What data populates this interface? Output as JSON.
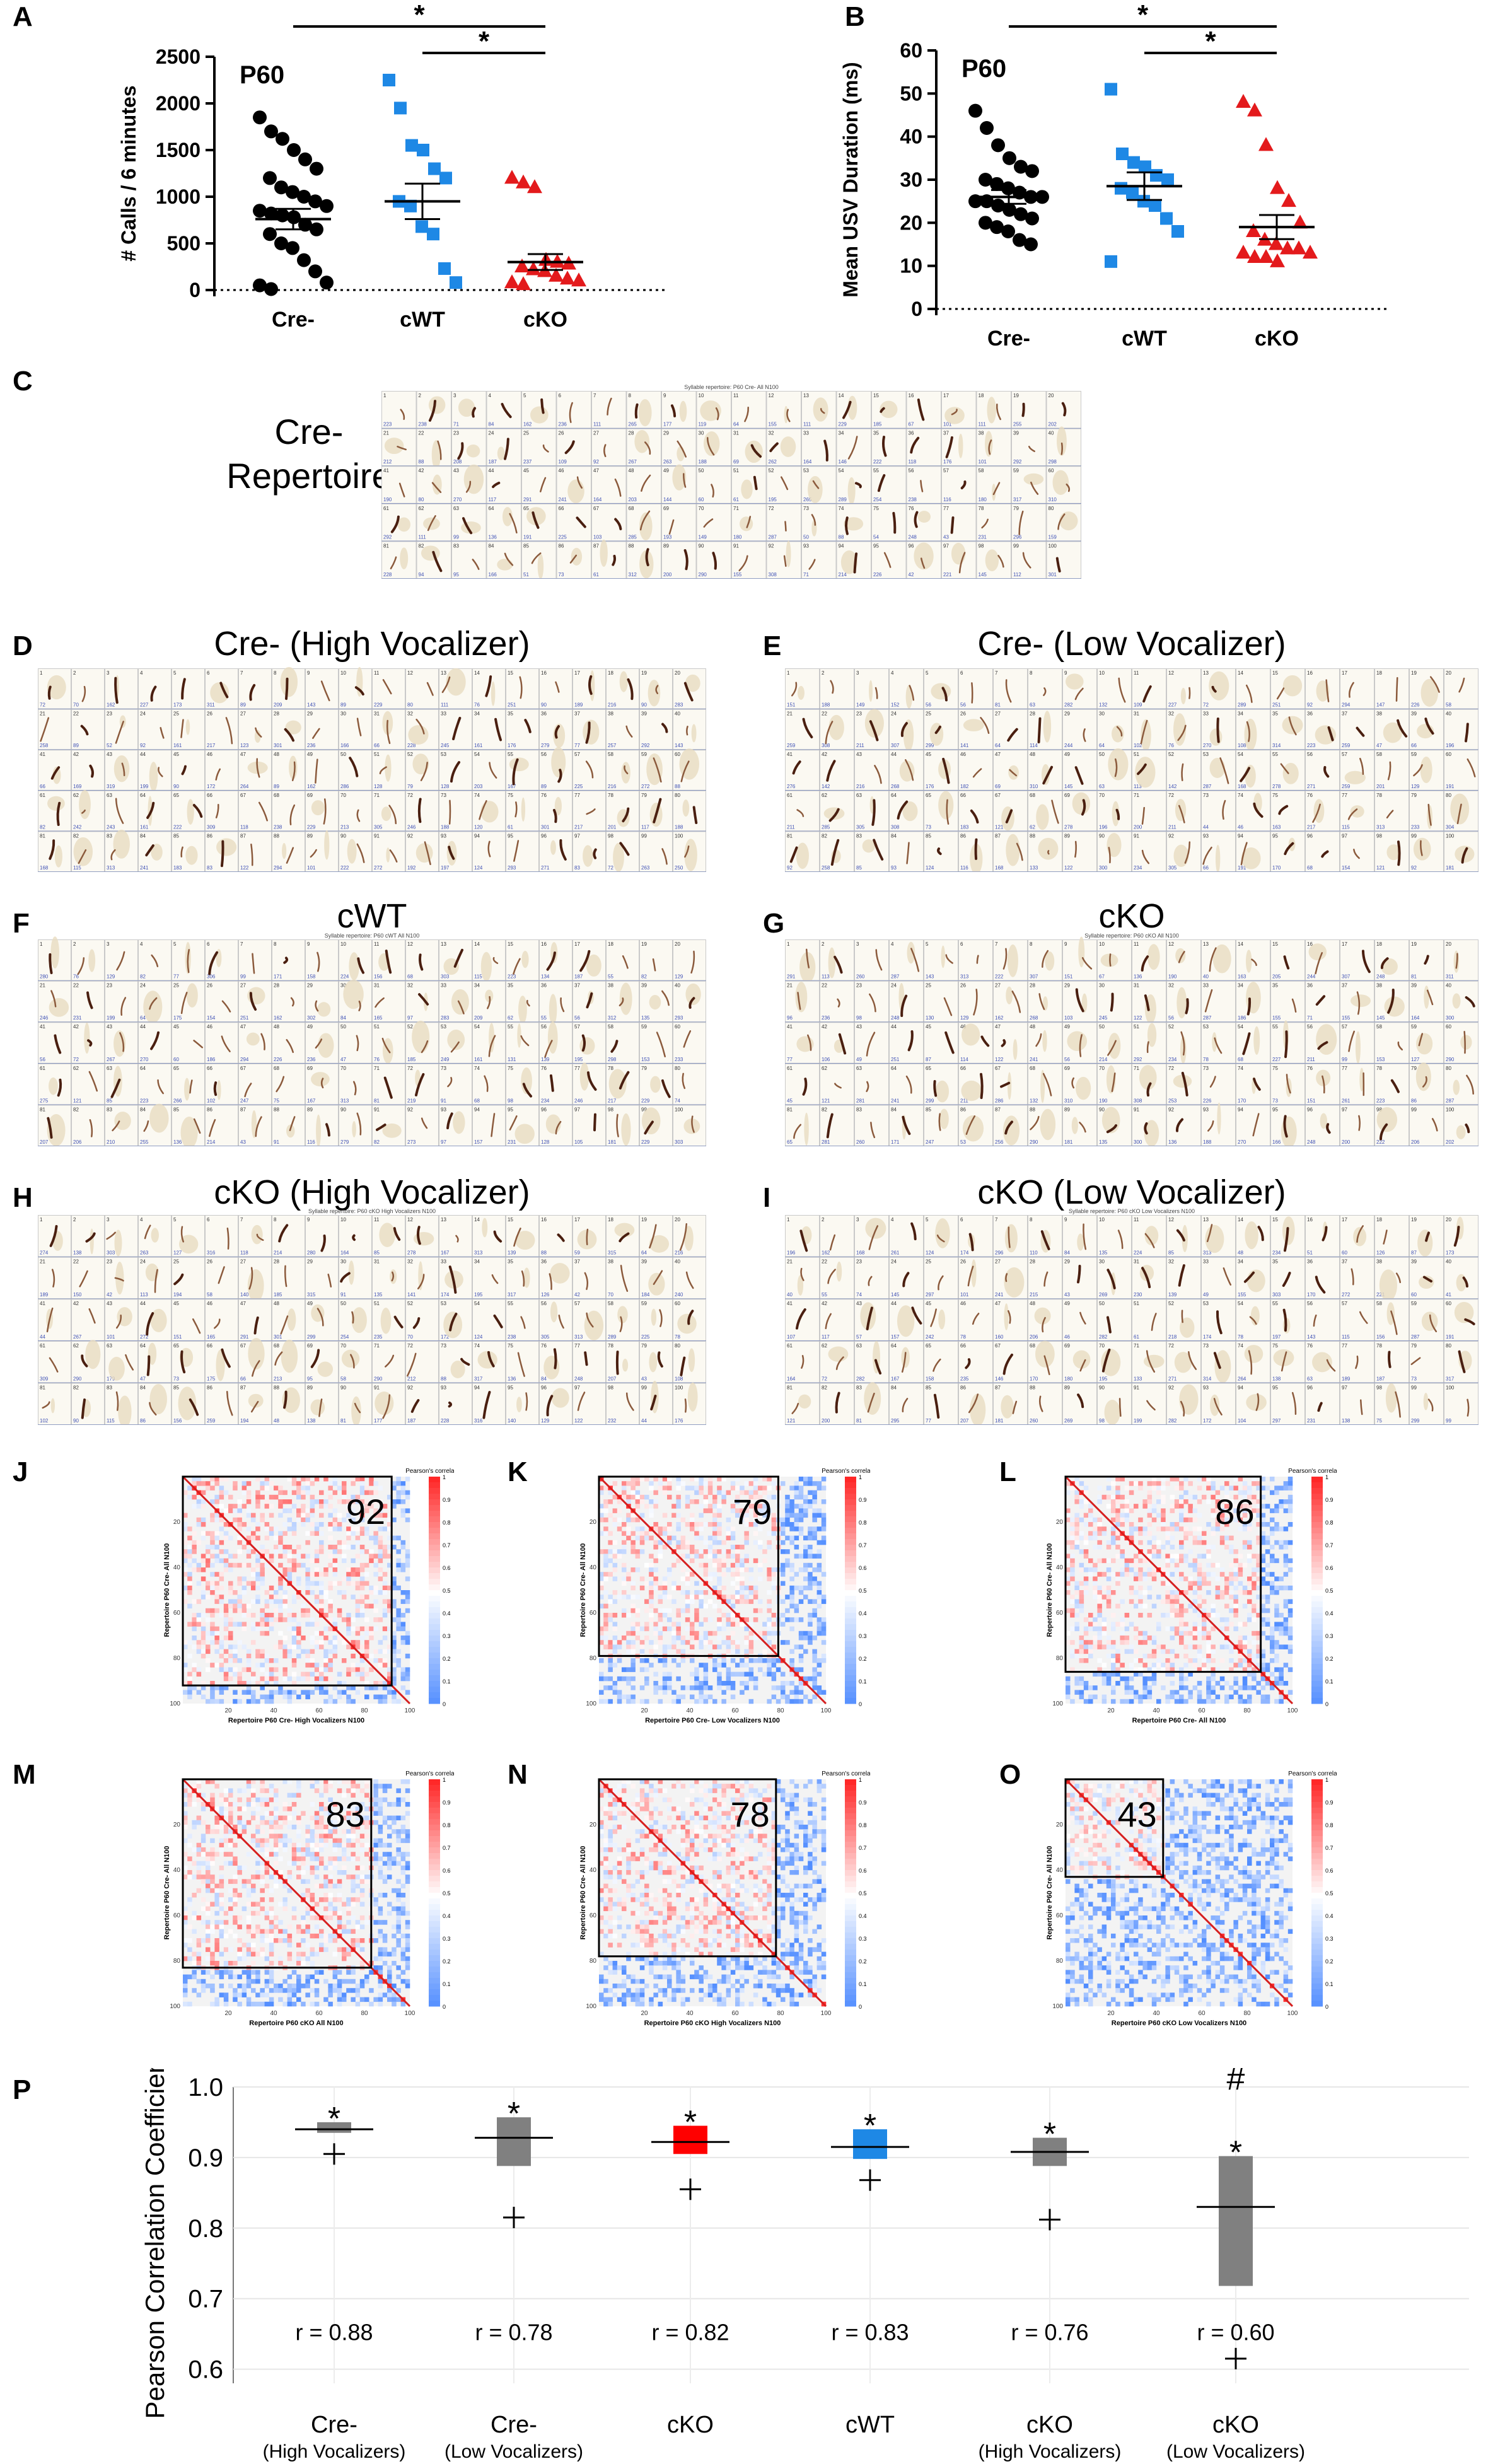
{
  "chart_data": [
    {
      "panel": "A",
      "type": "scatter",
      "title": "P60",
      "ylabel": "# Calls / 6 minutes",
      "xlabel": "",
      "categories": [
        "Cre-",
        "cWT",
        "cKO"
      ],
      "ylim": [
        0,
        2500
      ],
      "yticks": [
        0,
        500,
        1000,
        1500,
        2000,
        2500
      ],
      "colors": [
        "#000000",
        "#1e88e5",
        "#e31a1c"
      ],
      "markers": [
        "circle",
        "square",
        "triangle"
      ],
      "means": [
        760,
        950,
        300
      ],
      "sems": [
        110,
        190,
        85
      ],
      "series": [
        {
          "values": [
            1850,
            1700,
            1620,
            1500,
            1400,
            1300,
            1200,
            1100,
            1050,
            1000,
            950,
            900,
            850,
            820,
            800,
            780,
            700,
            650,
            600,
            500,
            450,
            320,
            200,
            80,
            50,
            10
          ]
        },
        {
          "values": [
            2250,
            1950,
            1550,
            1500,
            1300,
            1200,
            950,
            900,
            680,
            600,
            230,
            80
          ]
        },
        {
          "values": [
            1200,
            1150,
            1100,
            320,
            300,
            280,
            250,
            220,
            200,
            150,
            120,
            100,
            80,
            60
          ]
        }
      ],
      "significance": [
        {
          "pair": [
            0,
            2
          ],
          "label": "*"
        },
        {
          "pair": [
            1,
            2
          ],
          "label": "*"
        }
      ]
    },
    {
      "panel": "B",
      "type": "scatter",
      "title": "P60",
      "ylabel": "Mean USV Duration (ms)",
      "xlabel": "",
      "categories": [
        "Cre-",
        "cWT",
        "cKO"
      ],
      "ylim": [
        0,
        60
      ],
      "yticks": [
        0,
        10,
        20,
        30,
        40,
        50,
        60
      ],
      "colors": [
        "#000000",
        "#1e88e5",
        "#e31a1c"
      ],
      "markers": [
        "circle",
        "square",
        "triangle"
      ],
      "means": [
        26,
        28.5,
        19
      ],
      "sems": [
        1.6,
        3.2,
        2.8
      ],
      "series": [
        {
          "values": [
            46,
            42,
            38,
            35,
            33,
            32,
            30,
            29,
            28,
            27,
            26,
            26,
            25,
            25,
            24,
            23,
            22,
            21,
            20,
            19,
            18,
            16,
            15
          ]
        },
        {
          "values": [
            51,
            36,
            34,
            33,
            31,
            30,
            28,
            27,
            25,
            24,
            21,
            18,
            11
          ]
        },
        {
          "values": [
            48,
            46,
            38,
            28,
            25,
            20,
            18,
            16,
            15,
            14,
            14,
            13,
            13,
            12,
            12,
            11
          ]
        }
      ],
      "significance": [
        {
          "pair": [
            0,
            2
          ],
          "label": "*"
        },
        {
          "pair": [
            1,
            2
          ],
          "label": "*"
        }
      ]
    },
    {
      "panel": "P",
      "type": "box",
      "ylabel": "Pearson Correlation Coefficient",
      "xlabel": "",
      "ylim": [
        0.58,
        1.0
      ],
      "yticks": [
        0.6,
        0.7,
        0.8,
        0.9,
        1.0
      ],
      "ytick_labels": [
        "0.6",
        "0.7",
        "0.8",
        "0.9",
        "1.0"
      ],
      "categories": [
        {
          "name": "Cre-",
          "sub": "(High Vocalizers)"
        },
        {
          "name": "Cre-",
          "sub": "(Low Vocalizers)"
        },
        {
          "name": "cKO",
          "sub": ""
        },
        {
          "name": "cWT",
          "sub": ""
        },
        {
          "name": "cKO",
          "sub": "(High Vocalizers)"
        },
        {
          "name": "cKO",
          "sub": "(Low Vocalizers)"
        }
      ],
      "boxes": [
        {
          "q1": 0.935,
          "median": 0.94,
          "q3": 0.95,
          "color": "#808080",
          "plus": 0.905,
          "r": "r = 0.88",
          "marks": [
            "*"
          ]
        },
        {
          "q1": 0.888,
          "median": 0.928,
          "q3": 0.957,
          "color": "#808080",
          "plus": 0.815,
          "r": "r = 0.78",
          "marks": [
            "*"
          ]
        },
        {
          "q1": 0.905,
          "median": 0.922,
          "q3": 0.945,
          "color": "#ff0000",
          "plus": 0.855,
          "r": "r = 0.82",
          "marks": [
            "*"
          ]
        },
        {
          "q1": 0.898,
          "median": 0.915,
          "q3": 0.94,
          "color": "#1e88e5",
          "plus": 0.868,
          "r": "r = 0.83",
          "marks": [
            "*"
          ]
        },
        {
          "q1": 0.888,
          "median": 0.908,
          "q3": 0.928,
          "color": "#808080",
          "plus": 0.812,
          "r": "r = 0.76",
          "marks": [
            "*"
          ]
        },
        {
          "q1": 0.718,
          "median": 0.83,
          "q3": 0.902,
          "color": "#808080",
          "plus": 0.615,
          "r": "r = 0.60",
          "marks": [
            "*",
            "#"
          ]
        }
      ]
    }
  ],
  "labels": {
    "A": "A",
    "B": "B",
    "C": "C",
    "D": "D",
    "E": "E",
    "F": "F",
    "G": "G",
    "H": "H",
    "I": "I",
    "J": "J",
    "K": "K",
    "L": "L",
    "M": "M",
    "N": "N",
    "O": "O",
    "P": "P"
  },
  "repertoires": {
    "C": {
      "title": "Cre-\nRepertoire",
      "header": "Syllable repertoire: P60 Cre- All N100"
    },
    "D": {
      "title": "Cre- (High Vocalizer)",
      "header": ""
    },
    "E": {
      "title": "Cre- (Low Vocalizer)",
      "header": ""
    },
    "F": {
      "title": "cWT",
      "header": "Syllable repertoire: P60 cWT All N100"
    },
    "G": {
      "title": "cKO",
      "header": "Syllable repertoire: P60 cKO All N100"
    },
    "H": {
      "title": "cKO (High Vocalizer)",
      "header": "Syllable repertoire: P60 cKO High Vocalizers N100"
    },
    "I": {
      "title": "cKO (Low Vocalizer)",
      "header": "Syllable repertoire: P60 cKO Low Vocalizers N100"
    }
  },
  "matrices": {
    "J": {
      "value": "92",
      "overlap": 92,
      "xlabel": "Repertoire P60 Cre- High Vocalizers N100",
      "ylabel": "Repertoire P60 Cre- All N100",
      "density": 0.9
    },
    "K": {
      "value": "79",
      "overlap": 79,
      "xlabel": "Repertoire P60 Cre- Low Vocalizers N100",
      "ylabel": "Repertoire P60 Cre- All N100",
      "density": 0.7
    },
    "L": {
      "value": "86",
      "overlap": 86,
      "xlabel": "Repertoire P60 Cre- All N100",
      "ylabel": "Repertoire P60 Cre- All N100",
      "density": 0.8
    },
    "M": {
      "value": "83",
      "overlap": 83,
      "xlabel": "Repertoire P60 cKO All N100",
      "ylabel": "Repertoire P60 Cre- All N100",
      "density": 0.8
    },
    "N": {
      "value": "78",
      "overlap": 78,
      "xlabel": "Repertoire P60 cKO High Vocalizers N100",
      "ylabel": "Repertoire P60 Cre- All N100",
      "density": 0.75
    },
    "O": {
      "value": "43",
      "overlap": 43,
      "xlabel": "Repertoire P60 cKO Low Vocalizers N100",
      "ylabel": "Repertoire P60 Cre- All N100",
      "density": 0.35
    },
    "colorbar_title": "Pearson's correlation",
    "colorbar_ticks": [
      "1",
      "0.9",
      "0.8",
      "0.7",
      "0.6",
      "0.5",
      "0.4",
      "0.3",
      "0.2",
      "0.1",
      "0"
    ],
    "axis_ticks": [
      "20",
      "40",
      "60",
      "80",
      "100"
    ]
  }
}
